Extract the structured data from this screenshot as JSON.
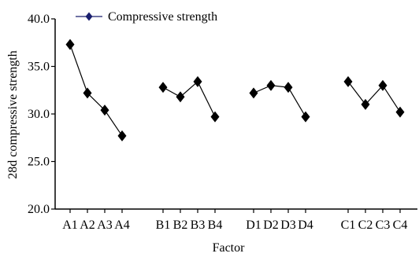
{
  "chart_data": {
    "type": "line",
    "ylabel": "28d compressive strength",
    "xlabel": "Factor",
    "ylim": [
      20.0,
      40.0
    ],
    "yticks": [
      "20.0",
      "25.0",
      "30.0",
      "35.0",
      "40.0"
    ],
    "grid": false,
    "legend_position": "top-left",
    "series": [
      {
        "name": "Compressive strength",
        "marker": "diamond",
        "color": "#000000",
        "legend_marker_color": "#1a1f6e",
        "groups": [
          {
            "categories": [
              "A1",
              "A2",
              "A3",
              "A4"
            ],
            "values": [
              37.3,
              32.2,
              30.4,
              27.7
            ]
          },
          {
            "categories": [
              "B1",
              "B2",
              "B3",
              "B4"
            ],
            "values": [
              32.8,
              31.8,
              33.4,
              29.7
            ]
          },
          {
            "categories": [
              "D1",
              "D2",
              "D3",
              "D4"
            ],
            "values": [
              32.2,
              33.0,
              32.8,
              29.7
            ]
          },
          {
            "categories": [
              "C1",
              "C2",
              "C3",
              "C4"
            ],
            "values": [
              33.4,
              31.0,
              33.0,
              30.2
            ]
          }
        ]
      }
    ]
  }
}
